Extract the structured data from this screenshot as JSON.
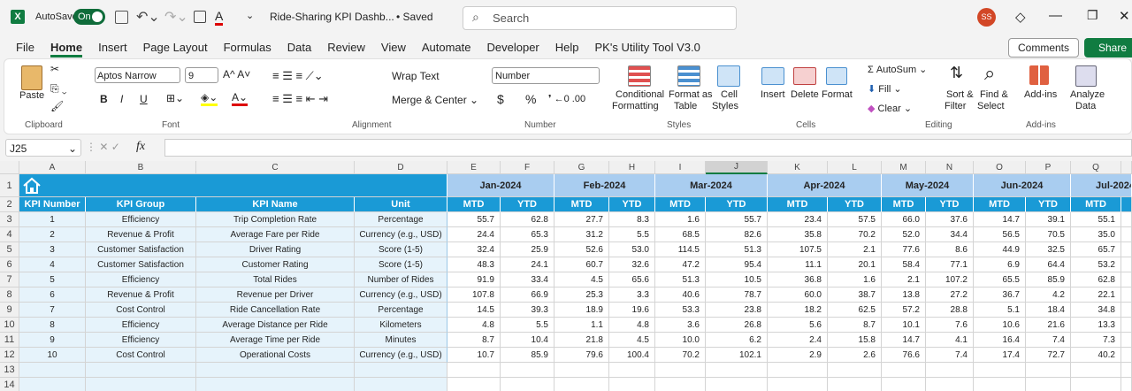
{
  "app": {
    "autosave": "AutoSave",
    "toggle": "On",
    "title": "Ride-Sharing KPI Dashb...",
    "saved": "• Saved",
    "search": "Search",
    "avatar": "SS"
  },
  "menu": [
    "File",
    "Home",
    "Insert",
    "Page Layout",
    "Formulas",
    "Data",
    "Review",
    "View",
    "Automate",
    "Developer",
    "Help",
    "PK's Utility Tool V3.0"
  ],
  "buttons": {
    "comments": "Comments",
    "share": "Share"
  },
  "ribbon": {
    "paste": "Paste",
    "clipboard": "Clipboard",
    "font_name": "Aptos Narrow",
    "font_size": "9",
    "font": "Font",
    "bold": "B",
    "italic": "I",
    "underline": "U",
    "wrap": "Wrap Text",
    "merge": "Merge & Center",
    "alignment": "Alignment",
    "number_format": "Number",
    "currency": "$",
    "percent": "%",
    "number": "Number",
    "cond1": "Conditional",
    "cond2": "Formatting",
    "fat1": "Format as",
    "fat2": "Table",
    "cs1": "Cell",
    "cs2": "Styles",
    "styles": "Styles",
    "insert": "Insert",
    "delete": "Delete",
    "format": "Format",
    "cells": "Cells",
    "autosum": "AutoSum",
    "fill": "Fill",
    "clear": "Clear",
    "sort1": "Sort &",
    "sort2": "Filter",
    "find1": "Find &",
    "find2": "Select",
    "editing": "Editing",
    "addins": "Add-ins",
    "addins_group": "Add-ins",
    "an1": "Analyze",
    "an2": "Data"
  },
  "formula_bar": {
    "cell": "J25",
    "fx": "fx"
  },
  "sheet": {
    "columns": [
      "A",
      "B",
      "C",
      "D",
      "E",
      "F",
      "G",
      "H",
      "I",
      "J",
      "K",
      "L",
      "M",
      "N",
      "O",
      "P",
      "Q"
    ],
    "row_numbers": [
      1,
      2,
      3,
      4,
      5,
      6,
      7,
      8,
      9,
      10,
      11,
      12,
      13,
      14
    ]
  },
  "table": {
    "headers": [
      "KPI Number",
      "KPI Group",
      "KPI Name",
      "Unit"
    ],
    "months": [
      "Jan-2024",
      "Feb-2024",
      "Mar-2024",
      "Apr-2024",
      "May-2024",
      "Jun-2024",
      "Jul-2024"
    ],
    "subheaders": [
      "MTD",
      "YTD",
      "MTD",
      "YTD",
      "MTD",
      "YTD",
      "MTD",
      "YTD",
      "MTD",
      "YTD",
      "MTD",
      "YTD",
      "MTD"
    ],
    "rows": [
      [
        "1",
        "Efficiency",
        "Trip Completion Rate",
        "Percentage",
        "55.7",
        "62.8",
        "27.7",
        "8.3",
        "1.6",
        "55.7",
        "23.4",
        "57.5",
        "66.0",
        "37.6",
        "14.7",
        "39.1",
        "55.1"
      ],
      [
        "2",
        "Revenue & Profit",
        "Average Fare per Ride",
        "Currency (e.g., USD)",
        "24.4",
        "65.3",
        "31.2",
        "5.5",
        "68.5",
        "82.6",
        "35.8",
        "70.2",
        "52.0",
        "34.4",
        "56.5",
        "70.5",
        "35.0"
      ],
      [
        "3",
        "Customer Satisfaction",
        "Driver Rating",
        "Score (1-5)",
        "32.4",
        "25.9",
        "52.6",
        "53.0",
        "114.5",
        "51.3",
        "107.5",
        "2.1",
        "77.6",
        "8.6",
        "44.9",
        "32.5",
        "65.7"
      ],
      [
        "4",
        "Customer Satisfaction",
        "Customer Rating",
        "Score (1-5)",
        "48.3",
        "24.1",
        "60.7",
        "32.6",
        "47.2",
        "95.4",
        "11.1",
        "20.1",
        "58.4",
        "77.1",
        "6.9",
        "64.4",
        "53.2"
      ],
      [
        "5",
        "Efficiency",
        "Total Rides",
        "Number of Rides",
        "91.9",
        "33.4",
        "4.5",
        "65.6",
        "51.3",
        "10.5",
        "36.8",
        "1.6",
        "2.1",
        "107.2",
        "65.5",
        "85.9",
        "62.8"
      ],
      [
        "6",
        "Revenue & Profit",
        "Revenue per Driver",
        "Currency (e.g., USD)",
        "107.8",
        "66.9",
        "25.3",
        "3.3",
        "40.6",
        "78.7",
        "60.0",
        "38.7",
        "13.8",
        "27.2",
        "36.7",
        "4.2",
        "22.1"
      ],
      [
        "7",
        "Cost Control",
        "Ride Cancellation Rate",
        "Percentage",
        "14.5",
        "39.3",
        "18.9",
        "19.6",
        "53.3",
        "23.8",
        "18.2",
        "62.5",
        "57.2",
        "28.8",
        "5.1",
        "18.4",
        "34.8"
      ],
      [
        "8",
        "Efficiency",
        "Average Distance per Ride",
        "Kilometers",
        "4.8",
        "5.5",
        "1.1",
        "4.8",
        "3.6",
        "26.8",
        "5.6",
        "8.7",
        "10.1",
        "7.6",
        "10.6",
        "21.6",
        "13.3"
      ],
      [
        "9",
        "Efficiency",
        "Average Time per Ride",
        "Minutes",
        "8.7",
        "10.4",
        "21.8",
        "4.5",
        "10.0",
        "6.2",
        "2.4",
        "15.8",
        "14.7",
        "4.1",
        "16.4",
        "7.4",
        "7.3"
      ],
      [
        "10",
        "Cost Control",
        "Operational Costs",
        "Currency (e.g., USD)",
        "10.7",
        "85.9",
        "79.6",
        "100.4",
        "70.2",
        "102.1",
        "2.9",
        "2.6",
        "76.6",
        "7.4",
        "17.4",
        "72.7",
        "40.2"
      ]
    ]
  }
}
